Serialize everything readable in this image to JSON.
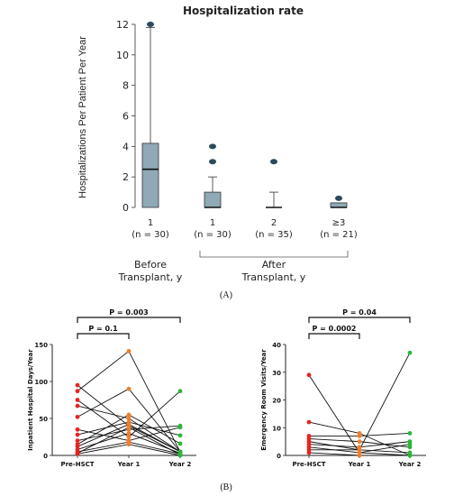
{
  "chart_data": [
    {
      "type": "box",
      "title": "Hospitalization rate",
      "ylabel": "Hospitalizations Per Patient Per Year",
      "ylim": [
        0,
        12
      ],
      "yticks": [
        0,
        2,
        4,
        6,
        8,
        10,
        12
      ],
      "categories": [
        {
          "label": "1",
          "n": "(n = 30)"
        },
        {
          "label": "1",
          "n": "(n = 30)"
        },
        {
          "label": "2",
          "n": "(n = 35)"
        },
        {
          "label": "≥3",
          "n": "(n = 21)"
        }
      ],
      "boxes": [
        {
          "whisker_low": 0,
          "q1": 0,
          "median": 2.5,
          "q3": 4.2,
          "whisker_high": 11.8,
          "outliers": [
            12
          ]
        },
        {
          "whisker_low": 0,
          "q1": 0,
          "median": 0,
          "q3": 1,
          "whisker_high": 2,
          "outliers": [
            3,
            4
          ]
        },
        {
          "whisker_low": 0,
          "q1": 0,
          "median": 0,
          "q3": 0,
          "whisker_high": 1,
          "outliers": [
            3
          ]
        },
        {
          "whisker_low": 0,
          "q1": 0,
          "median": 0,
          "q3": 0.3,
          "whisker_high": 0.3,
          "outliers": [
            0.6
          ]
        }
      ],
      "groups": [
        {
          "label_line1": "Before",
          "label_line2": "Transplant, y"
        },
        {
          "label_line1": "After",
          "label_line2": "Transplant, y"
        }
      ],
      "panel_label": "(A)",
      "box_color": "#8fa9b6",
      "outlier_color": "#2c4a5c"
    },
    {
      "type": "line",
      "ylabel": "Inpatient  Hospital Days/Year",
      "ylim": [
        0,
        150
      ],
      "yticks": [
        0,
        50,
        100,
        150
      ],
      "categories": [
        "Pre-HSCT",
        "Year 1",
        "Year 2"
      ],
      "brackets": [
        {
          "from": 0,
          "to": 1,
          "label": "P = 0.1"
        },
        {
          "from": 0,
          "to": 2,
          "label": "P = 0.003"
        }
      ],
      "series": [
        {
          "values": [
            95,
            40,
            5
          ]
        },
        {
          "values": [
            87,
            141,
            5
          ]
        },
        {
          "values": [
            75,
            25,
            87
          ]
        },
        {
          "values": [
            67,
            50,
            5
          ]
        },
        {
          "values": [
            52,
            90,
            5
          ]
        },
        {
          "values": [
            35,
            20,
            38
          ]
        },
        {
          "values": [
            28,
            45,
            27
          ]
        },
        {
          "values": [
            20,
            35,
            40
          ]
        },
        {
          "values": [
            15,
            55,
            16
          ]
        },
        {
          "values": [
            12,
            42,
            5
          ]
        },
        {
          "values": [
            8,
            30,
            3
          ]
        },
        {
          "values": [
            5,
            18,
            2
          ]
        },
        {
          "values": [
            3,
            38,
            1
          ]
        },
        {
          "values": [
            2,
            15,
            0
          ]
        }
      ],
      "point_colors": [
        "#e52421",
        "#f07d2a",
        "#2bb539"
      ]
    },
    {
      "type": "line",
      "ylabel": "Emergency  Room Visits/Year",
      "ylim": [
        0,
        40
      ],
      "yticks": [
        0,
        10,
        20,
        30,
        40
      ],
      "categories": [
        "Pre-HSCT",
        "Year 1",
        "Year 2"
      ],
      "brackets": [
        {
          "from": 0,
          "to": 1,
          "label": "P = 0.0002"
        },
        {
          "from": 0,
          "to": 2,
          "label": "P = 0.04"
        }
      ],
      "series": [
        {
          "values": [
            29,
            1,
            0
          ]
        },
        {
          "values": [
            12,
            8,
            0
          ]
        },
        {
          "values": [
            7,
            7,
            8
          ]
        },
        {
          "values": [
            6,
            5,
            3
          ]
        },
        {
          "values": [
            5,
            2,
            37
          ]
        },
        {
          "values": [
            4,
            3,
            5
          ]
        },
        {
          "values": [
            3,
            1,
            4
          ]
        },
        {
          "values": [
            2,
            2,
            1
          ]
        },
        {
          "values": [
            1,
            0,
            0
          ]
        }
      ],
      "point_colors": [
        "#e52421",
        "#f07d2a",
        "#2bb539"
      ]
    }
  ],
  "panel_label_b": "(B)"
}
